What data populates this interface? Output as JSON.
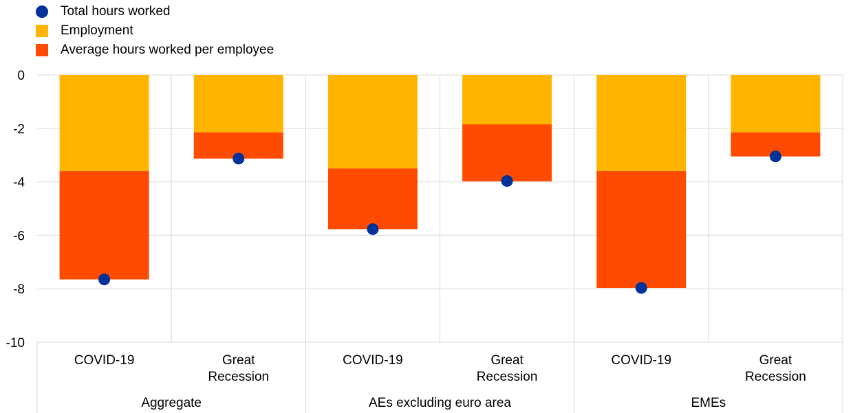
{
  "chart_data": {
    "type": "bar",
    "stacked": true,
    "groups": [
      {
        "label": "Aggregate",
        "categories": [
          "COVID-19",
          "Great\nRecession"
        ]
      },
      {
        "label": "AEs excluding euro area",
        "categories": [
          "COVID-19",
          "Great\nRecession"
        ]
      },
      {
        "label": "EMEs",
        "categories": [
          "COVID-19",
          "Great\nRecession"
        ]
      }
    ],
    "series": [
      {
        "name": "Employment",
        "kind": "bar",
        "color": "#FFB400",
        "values": [
          -3.6,
          -2.15,
          -3.5,
          -1.85,
          -3.6,
          -2.15
        ]
      },
      {
        "name": "Average hours worked per employee",
        "kind": "bar",
        "color": "#FF4B00",
        "values": [
          -4.05,
          -0.98,
          -2.27,
          -2.13,
          -4.37,
          -0.9
        ]
      },
      {
        "name": "Total hours worked",
        "kind": "dot",
        "color": "#003299",
        "values": [
          -7.65,
          -3.13,
          -5.77,
          -3.97,
          -7.97,
          -3.05
        ]
      }
    ],
    "y_ticks": [
      0,
      -2,
      -4,
      -6,
      -8,
      -10
    ],
    "ylim": [
      -10,
      0
    ],
    "grid": true,
    "legend_position": "top-left"
  }
}
